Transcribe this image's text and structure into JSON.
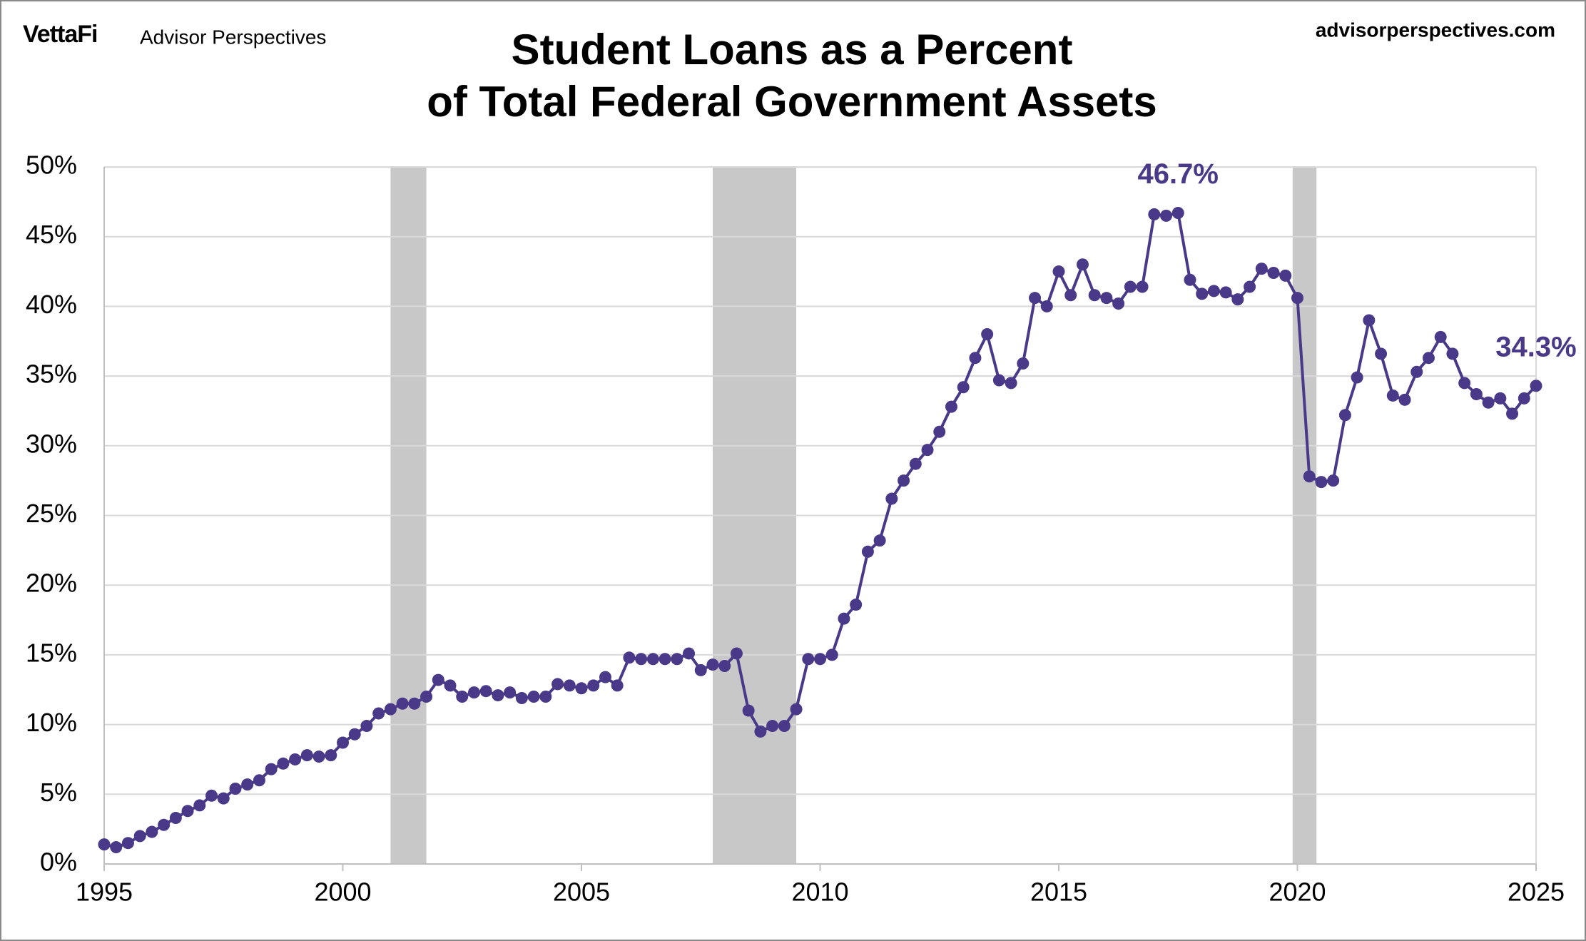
{
  "brand": "VettaFi",
  "publisher": "Advisor Perspectives",
  "website": "advisorperspectives.com",
  "chart_data": {
    "type": "line",
    "title": [
      "Student Loans as a Percent",
      "of Total Federal Government Assets"
    ],
    "x": [
      1995,
      1995.25,
      1995.5,
      1995.75,
      1996,
      1996.25,
      1996.5,
      1996.75,
      1997,
      1997.25,
      1997.5,
      1997.75,
      1998,
      1998.25,
      1998.5,
      1998.75,
      1999,
      1999.25,
      1999.5,
      1999.75,
      2000,
      2000.25,
      2000.5,
      2000.75,
      2001,
      2001.25,
      2001.5,
      2001.75,
      2002,
      2002.25,
      2002.5,
      2002.75,
      2003,
      2003.25,
      2003.5,
      2003.75,
      2004,
      2004.25,
      2004.5,
      2004.75,
      2005,
      2005.25,
      2005.5,
      2005.75,
      2006,
      2006.25,
      2006.5,
      2006.75,
      2007,
      2007.25,
      2007.5,
      2007.75,
      2008,
      2008.25,
      2008.5,
      2008.75,
      2009,
      2009.25,
      2009.5,
      2009.75,
      2010,
      2010.25,
      2010.5,
      2010.75,
      2011,
      2011.25,
      2011.5,
      2011.75,
      2012,
      2012.25,
      2012.5,
      2012.75,
      2013,
      2013.25,
      2013.5,
      2013.75,
      2014,
      2014.25,
      2014.5,
      2014.75,
      2015,
      2015.25,
      2015.5,
      2015.75,
      2016,
      2016.25,
      2016.5,
      2016.75,
      2017,
      2017.25,
      2017.5,
      2017.75,
      2018,
      2018.25,
      2018.5,
      2018.75,
      2019,
      2019.25,
      2019.5,
      2019.75,
      2020,
      2020.25,
      2020.5,
      2020.75,
      2021,
      2021.25,
      2021.5,
      2021.75,
      2022,
      2022.25,
      2022.5,
      2022.75,
      2023,
      2023.25,
      2023.5,
      2023.75,
      2024,
      2024.25,
      2024.5,
      2024.75,
      2025
    ],
    "series": [
      {
        "name": "Student Loans as a Percent of Total Federal Government Assets",
        "color": "#4a3889",
        "values": [
          1.4,
          1.2,
          1.5,
          2.0,
          2.3,
          2.8,
          3.3,
          3.8,
          4.2,
          4.9,
          4.7,
          5.4,
          5.7,
          6.0,
          6.8,
          7.2,
          7.5,
          7.8,
          7.7,
          7.8,
          8.7,
          9.3,
          9.9,
          10.8,
          11.1,
          11.5,
          11.5,
          12.0,
          13.2,
          12.8,
          12.0,
          12.3,
          12.4,
          12.1,
          12.3,
          11.9,
          12.0,
          12.0,
          12.9,
          12.8,
          12.6,
          12.8,
          13.4,
          12.8,
          14.8,
          14.7,
          14.7,
          14.7,
          14.7,
          15.1,
          13.9,
          14.3,
          14.2,
          15.1,
          11.0,
          9.5,
          9.9,
          9.9,
          11.1,
          14.7,
          14.7,
          15.0,
          17.6,
          18.6,
          22.4,
          23.2,
          26.2,
          27.5,
          28.7,
          29.7,
          31.0,
          32.8,
          34.2,
          36.3,
          38.0,
          34.7,
          34.5,
          35.9,
          40.6,
          40.0,
          42.5,
          40.8,
          43.0,
          40.8,
          40.6,
          40.2,
          41.4,
          41.4,
          46.6,
          46.5,
          46.7,
          41.9,
          40.9,
          41.1,
          41.0,
          40.5,
          41.4,
          42.7,
          42.4,
          42.2,
          40.6,
          27.8,
          27.4,
          27.5,
          32.2,
          34.9,
          39.0,
          36.6,
          33.6,
          33.3,
          35.3,
          36.3,
          37.8,
          36.6,
          34.5,
          33.7,
          33.1,
          33.4,
          32.3,
          33.4,
          34.3
        ],
        "value_labels": [
          null,
          null,
          null,
          null,
          null,
          null,
          null,
          null,
          null,
          null,
          null,
          null,
          null,
          null,
          null,
          null,
          null,
          null,
          null,
          null,
          null,
          null,
          null,
          null,
          null,
          null,
          null,
          null,
          null,
          null,
          null,
          null,
          null,
          null,
          null,
          null,
          null,
          null,
          null,
          null,
          null,
          null,
          null,
          null,
          null,
          null,
          null,
          null,
          null,
          null,
          null,
          null,
          null,
          null,
          null,
          null,
          null,
          null,
          null,
          null,
          null,
          null,
          null,
          null,
          null,
          null,
          null,
          null,
          null,
          null,
          null,
          null,
          null,
          null,
          null,
          null,
          null,
          null,
          null,
          null,
          null,
          null,
          null,
          null,
          null,
          null,
          null,
          null,
          null,
          null,
          "46.7%",
          null,
          null,
          null,
          null,
          null,
          null,
          null,
          null,
          null,
          null,
          null,
          null,
          null,
          null,
          null,
          null,
          null,
          null,
          null,
          null,
          null,
          null,
          null,
          null,
          null,
          null,
          null,
          null,
          null,
          "34.3%"
        ]
      }
    ],
    "recessions": [
      [
        2001,
        2001.75
      ],
      [
        2007.75,
        2009.5
      ],
      [
        2019.9,
        2020.4
      ]
    ],
    "recession_color": "#c8c8c8",
    "xlim": [
      1995,
      2025
    ],
    "xticks": [
      1995,
      2000,
      2005,
      2010,
      2015,
      2020,
      2025
    ],
    "ylim": [
      0,
      50
    ],
    "yticks": [
      {
        "value": 0,
        "label": "0%"
      },
      {
        "value": 5,
        "label": "5%"
      },
      {
        "value": 10,
        "label": "10%"
      },
      {
        "value": 15,
        "label": "15%"
      },
      {
        "value": 20,
        "label": "20%"
      },
      {
        "value": 25,
        "label": "25%"
      },
      {
        "value": 30,
        "label": "30%"
      },
      {
        "value": 35,
        "label": "35%"
      },
      {
        "value": 40,
        "label": "40%"
      },
      {
        "value": 45,
        "label": "45%"
      },
      {
        "value": 50,
        "label": "50%"
      }
    ],
    "grid": true
  }
}
